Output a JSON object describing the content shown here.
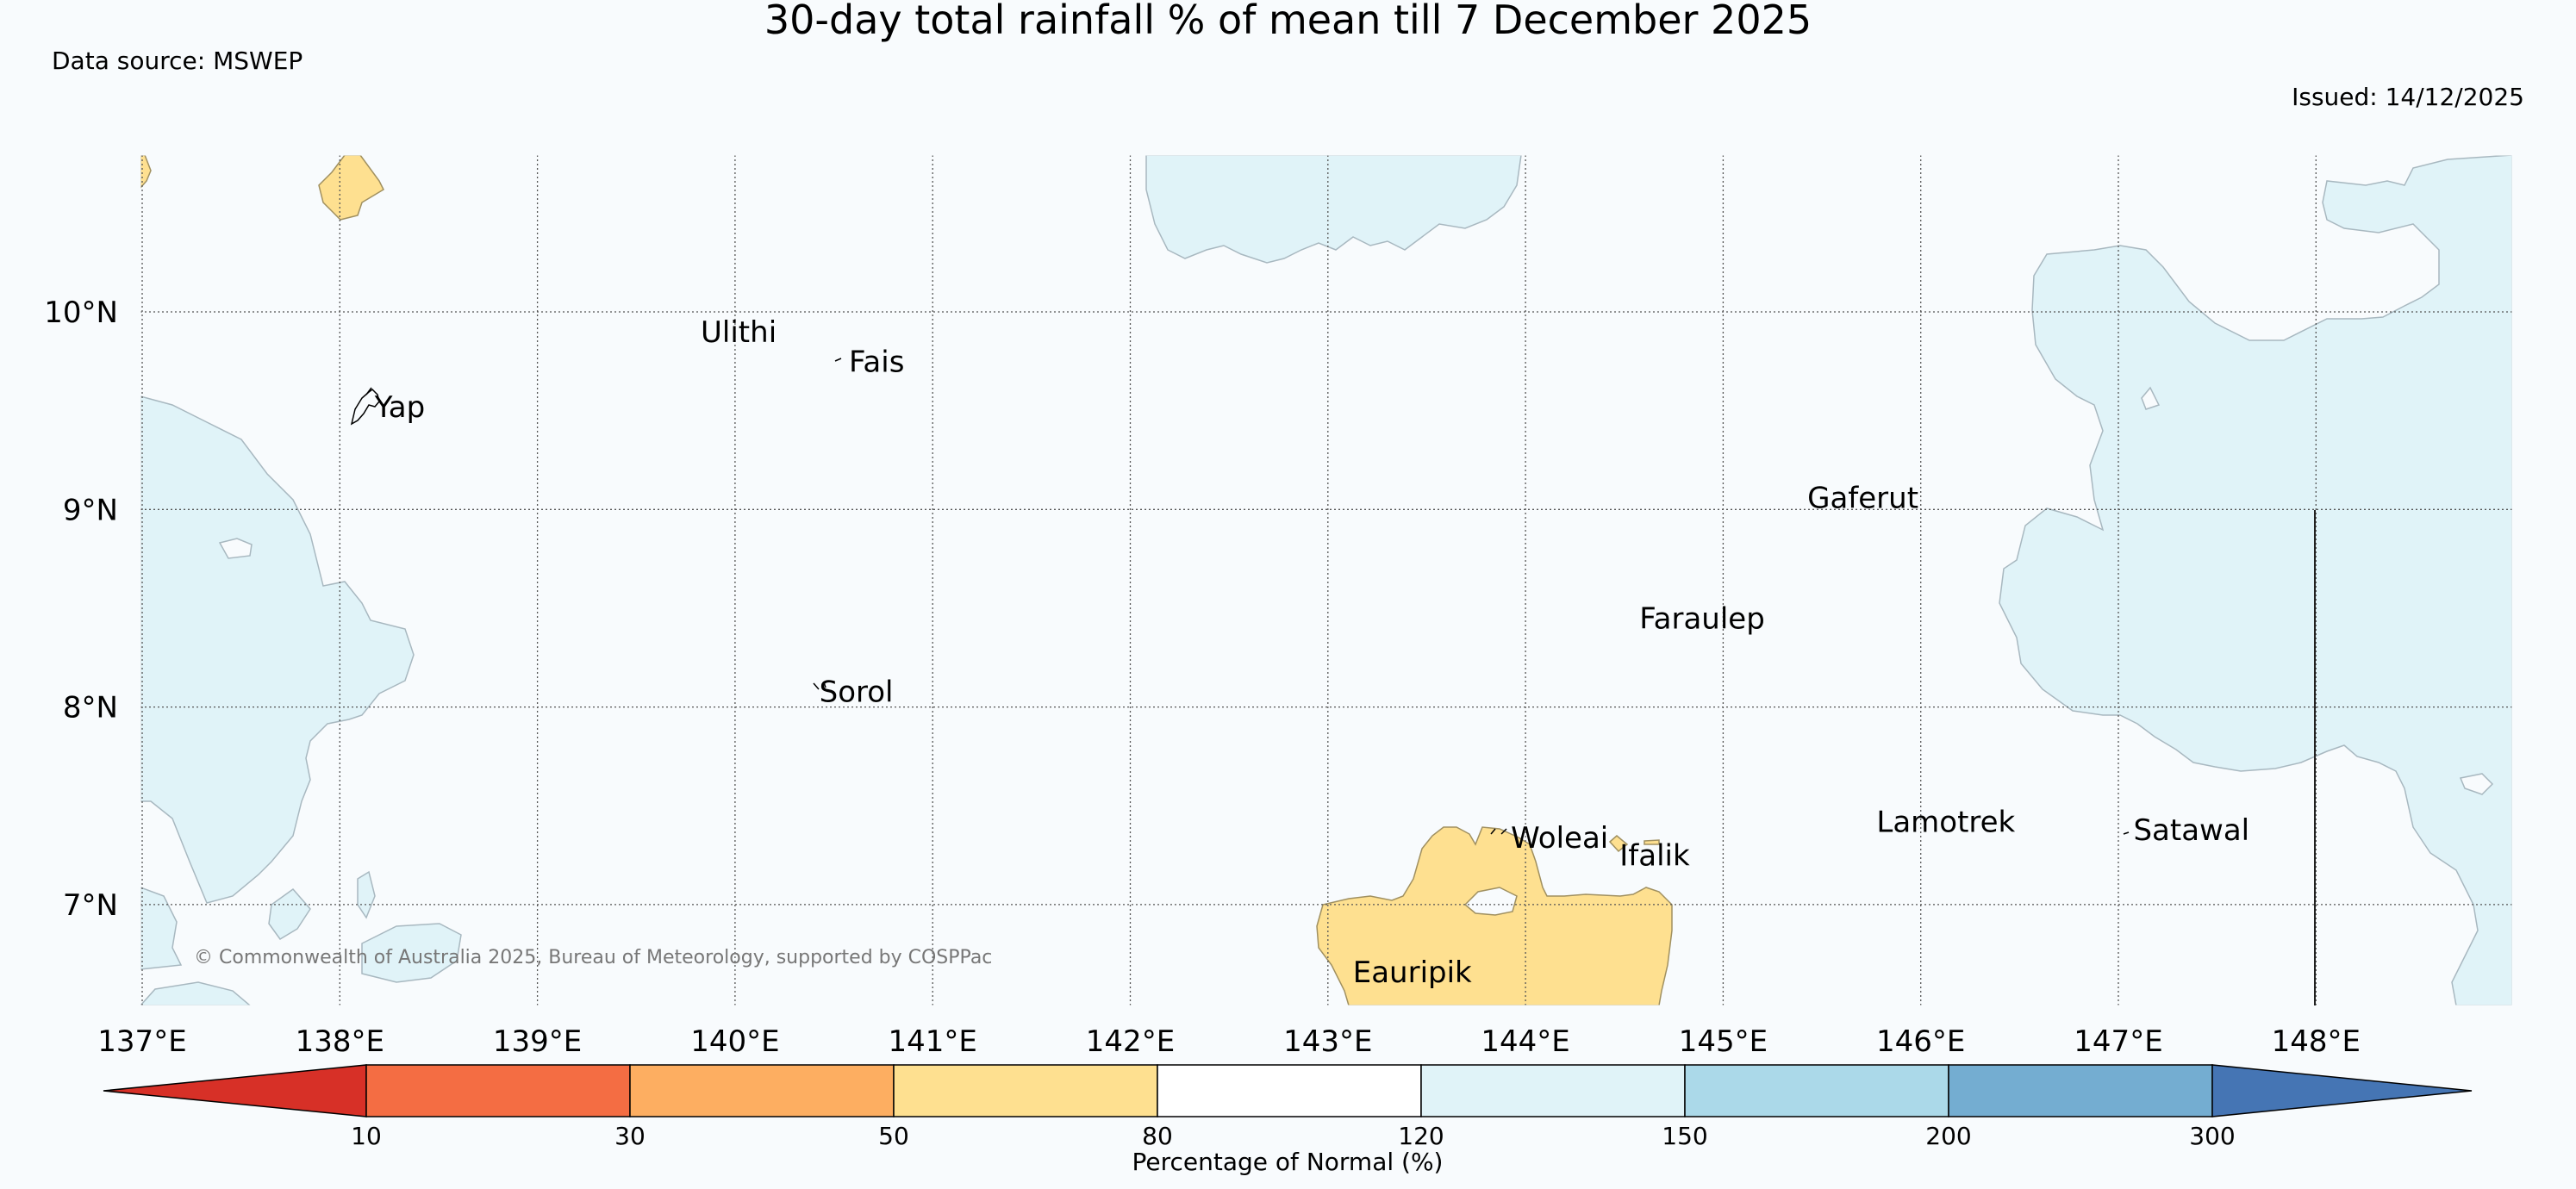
{
  "title": "30-day total rainfall % of mean till 7 December 2025",
  "data_source": "Data source: MSWEP",
  "issued": "Issued: 14/12/2025",
  "copyright": "© Commonwealth of Australia 2025, Bureau of Meteorology, supported by COSPPac",
  "latitudes": [
    {
      "value": 10,
      "label": "10°N"
    },
    {
      "value": 9,
      "label": "9°N"
    },
    {
      "value": 8,
      "label": "8°N"
    },
    {
      "value": 7,
      "label": "7°N"
    }
  ],
  "longitudes": [
    {
      "value": 137,
      "label": "137°E"
    },
    {
      "value": 138,
      "label": "138°E"
    },
    {
      "value": 139,
      "label": "139°E"
    },
    {
      "value": 140,
      "label": "140°E"
    },
    {
      "value": 141,
      "label": "141°E"
    },
    {
      "value": 142,
      "label": "142°E"
    },
    {
      "value": 143,
      "label": "143°E"
    },
    {
      "value": 144,
      "label": "144°E"
    },
    {
      "value": 145,
      "label": "145°E"
    },
    {
      "value": 146,
      "label": "146°E"
    },
    {
      "value": 147,
      "label": "147°E"
    },
    {
      "value": 148,
      "label": "148°E"
    }
  ],
  "islands": [
    {
      "name": "Ulithi",
      "lon": 139.8,
      "lat": 9.9
    },
    {
      "name": "Fais",
      "lon": 140.55,
      "lat": 9.75
    },
    {
      "name": "Yap",
      "lon": 138.15,
      "lat": 9.52
    },
    {
      "name": "Gaferut",
      "lon": 145.4,
      "lat": 9.06
    },
    {
      "name": "Faraulep",
      "lon": 144.55,
      "lat": 8.45
    },
    {
      "name": "Sorol",
      "lon": 140.4,
      "lat": 8.08
    },
    {
      "name": "Woleai",
      "lon": 143.9,
      "lat": 7.34
    },
    {
      "name": "Ifalik",
      "lon": 144.45,
      "lat": 7.25
    },
    {
      "name": "Lamotrek",
      "lon": 145.75,
      "lat": 7.42
    },
    {
      "name": "Satawal",
      "lon": 147.05,
      "lat": 7.38
    },
    {
      "name": "Eauripik",
      "lon": 143.1,
      "lat": 6.66
    }
  ],
  "colorbar": {
    "label": "Percentage of Normal (%)",
    "ticks": [
      "10",
      "30",
      "50",
      "80",
      "120",
      "150",
      "200",
      "300"
    ],
    "colors": {
      "under": "#d73027",
      "b10_30": "#f46d43",
      "b30_50": "#fdae61",
      "b50_80": "#fee090",
      "b80_120": "#ffffff",
      "b120_150": "#e0f3f8",
      "b150_200": "#abd9e9",
      "b200_300": "#74add1",
      "over": "#4575b4"
    }
  }
}
